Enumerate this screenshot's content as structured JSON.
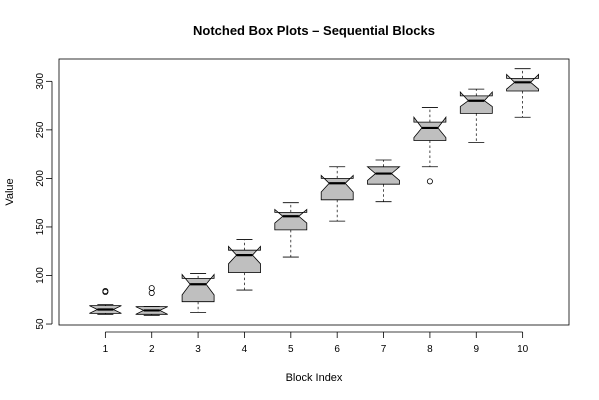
{
  "chart_data": {
    "type": "boxplot",
    "notched": true,
    "title": "Notched Box Plots – Sequential Blocks",
    "xlabel": "Block Index",
    "ylabel": "Value",
    "categories": [
      "1",
      "2",
      "3",
      "4",
      "5",
      "6",
      "7",
      "8",
      "9",
      "10"
    ],
    "xlim": [
      0,
      11
    ],
    "ylim": [
      49,
      323
    ],
    "yticks": [
      50,
      100,
      150,
      200,
      250,
      300
    ],
    "box_color": "#bfbfbf",
    "boxes": [
      {
        "label": "1",
        "min": 60,
        "q1": 61,
        "median": 65,
        "q3": 69,
        "max": 70,
        "notch": [
          61,
          69
        ],
        "outliers": [
          83,
          84
        ]
      },
      {
        "label": "2",
        "min": 59,
        "q1": 60,
        "median": 64,
        "q3": 68,
        "max": 68,
        "notch": [
          60,
          68
        ],
        "outliers": [
          82,
          87
        ]
      },
      {
        "label": "3",
        "min": 62,
        "q1": 73,
        "median": 91,
        "q3": 97,
        "max": 102,
        "notch": [
          80,
          101
        ],
        "outliers": []
      },
      {
        "label": "4",
        "min": 85,
        "q1": 103,
        "median": 121,
        "q3": 126,
        "max": 137,
        "notch": [
          112,
          130
        ],
        "outliers": []
      },
      {
        "label": "5",
        "min": 119,
        "q1": 147,
        "median": 161,
        "q3": 165,
        "max": 175,
        "notch": [
          154,
          168
        ],
        "outliers": []
      },
      {
        "label": "6",
        "min": 156,
        "q1": 178,
        "median": 195,
        "q3": 200,
        "max": 212,
        "notch": [
          186,
          203
        ],
        "outliers": []
      },
      {
        "label": "7",
        "min": 176,
        "q1": 194,
        "median": 205,
        "q3": 212,
        "max": 219,
        "notch": [
          198,
          212
        ],
        "outliers": []
      },
      {
        "label": "8",
        "min": 212,
        "q1": 239,
        "median": 252,
        "q3": 258,
        "max": 273,
        "notch": [
          242,
          263
        ],
        "outliers": [
          197
        ]
      },
      {
        "label": "9",
        "min": 237,
        "q1": 267,
        "median": 280,
        "q3": 285,
        "max": 292,
        "notch": [
          274,
          289
        ],
        "outliers": []
      },
      {
        "label": "10",
        "min": 263,
        "q1": 290,
        "median": 299,
        "q3": 303,
        "max": 313,
        "notch": [
          292,
          307
        ],
        "outliers": []
      }
    ]
  }
}
